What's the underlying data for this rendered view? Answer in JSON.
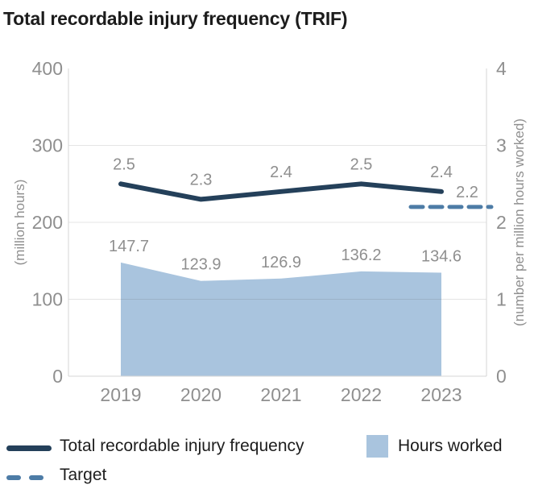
{
  "title": "Total recordable injury frequency (TRIF)",
  "colors": {
    "line": "#24405a",
    "target": "#4d7ca6",
    "area": "#a9c4de",
    "axis_text": "#8f8f8f",
    "grid": "#e9e9e9",
    "border": "#d6d6d6",
    "title_text": "#1c1c1c"
  },
  "chart_data": {
    "type": "line-area-combo",
    "title": "Total recordable injury frequency (TRIF)",
    "categories": [
      "2019",
      "2020",
      "2021",
      "2022",
      "2023"
    ],
    "series": [
      {
        "name": "Total recordable injury frequency",
        "type": "line",
        "axis": "right",
        "values": [
          2.5,
          2.3,
          2.4,
          2.5,
          2.4
        ],
        "labels": [
          "2.5",
          "2.3",
          "2.4",
          "2.5",
          "2.4"
        ]
      },
      {
        "name": "Hours worked",
        "type": "area",
        "axis": "left",
        "values": [
          147.7,
          123.9,
          126.9,
          136.2,
          134.6
        ],
        "labels": [
          "147.7",
          "123.9",
          "126.9",
          "136.2",
          "134.6"
        ]
      },
      {
        "name": "Target",
        "type": "dashed-line",
        "axis": "right",
        "value": 2.2,
        "label": "2.2"
      }
    ],
    "left_axis": {
      "label": "(million hours)",
      "ticks": [
        "0",
        "100",
        "200",
        "300",
        "400"
      ],
      "range": [
        0,
        400
      ]
    },
    "right_axis": {
      "label": "(number per million hours worked)",
      "ticks": [
        "0",
        "1",
        "2",
        "3",
        "4"
      ],
      "range": [
        0,
        4
      ]
    },
    "grid": true,
    "legend_position": "bottom"
  },
  "legend": {
    "items": [
      {
        "label": "Total recordable injury frequency",
        "swatch": "line"
      },
      {
        "label": "Hours worked",
        "swatch": "area"
      },
      {
        "label": "Target",
        "swatch": "dashed"
      }
    ]
  }
}
